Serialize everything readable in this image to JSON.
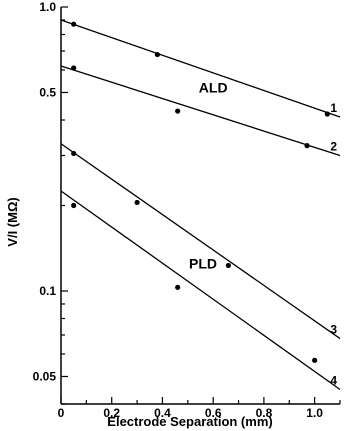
{
  "chart_data": {
    "type": "scatter",
    "xlabel": "Electrode Separation (mm)",
    "ylabel": "V/I (MΩ)",
    "xlim": [
      0,
      1.1
    ],
    "ylim": [
      0.04,
      1.0
    ],
    "y_scale": "log",
    "x_ticks": [
      "0",
      "0.2",
      "0.4",
      "0.6",
      "0.8",
      "1.0"
    ],
    "x_tick_values": [
      0,
      0.2,
      0.4,
      0.6,
      0.8,
      1.0
    ],
    "y_ticks": [
      "1.0",
      "0.5",
      "0.1",
      "0.05"
    ],
    "y_tick_values": [
      1.0,
      0.5,
      0.1,
      0.05
    ],
    "grid": false,
    "annotations": [
      {
        "text": "ALD",
        "x": 0.6,
        "y": 0.5
      },
      {
        "text": "PLD",
        "x": 0.56,
        "y": 0.12
      }
    ],
    "series": [
      {
        "label": "1",
        "points": [
          {
            "x": 0.05,
            "y": 0.87
          },
          {
            "x": 0.38,
            "y": 0.68
          },
          {
            "x": 1.05,
            "y": 0.42
          }
        ],
        "fit": {
          "x0": 0,
          "y0": 0.9,
          "x1": 1.1,
          "y1": 0.41
        }
      },
      {
        "label": "2",
        "points": [
          {
            "x": 0.05,
            "y": 0.61
          },
          {
            "x": 0.46,
            "y": 0.43
          },
          {
            "x": 0.97,
            "y": 0.325
          }
        ],
        "fit": {
          "x0": 0,
          "y0": 0.62,
          "x1": 1.1,
          "y1": 0.3
        }
      },
      {
        "label": "3",
        "points": [
          {
            "x": 0.05,
            "y": 0.305
          },
          {
            "x": 0.3,
            "y": 0.205
          },
          {
            "x": 0.66,
            "y": 0.123
          }
        ],
        "fit": {
          "x0": 0,
          "y0": 0.33,
          "x1": 1.1,
          "y1": 0.068
        }
      },
      {
        "label": "4",
        "points": [
          {
            "x": 0.05,
            "y": 0.2
          },
          {
            "x": 0.46,
            "y": 0.103
          },
          {
            "x": 1.0,
            "y": 0.057
          }
        ],
        "fit": {
          "x0": 0,
          "y0": 0.225,
          "x1": 1.1,
          "y1": 0.045
        }
      }
    ]
  }
}
